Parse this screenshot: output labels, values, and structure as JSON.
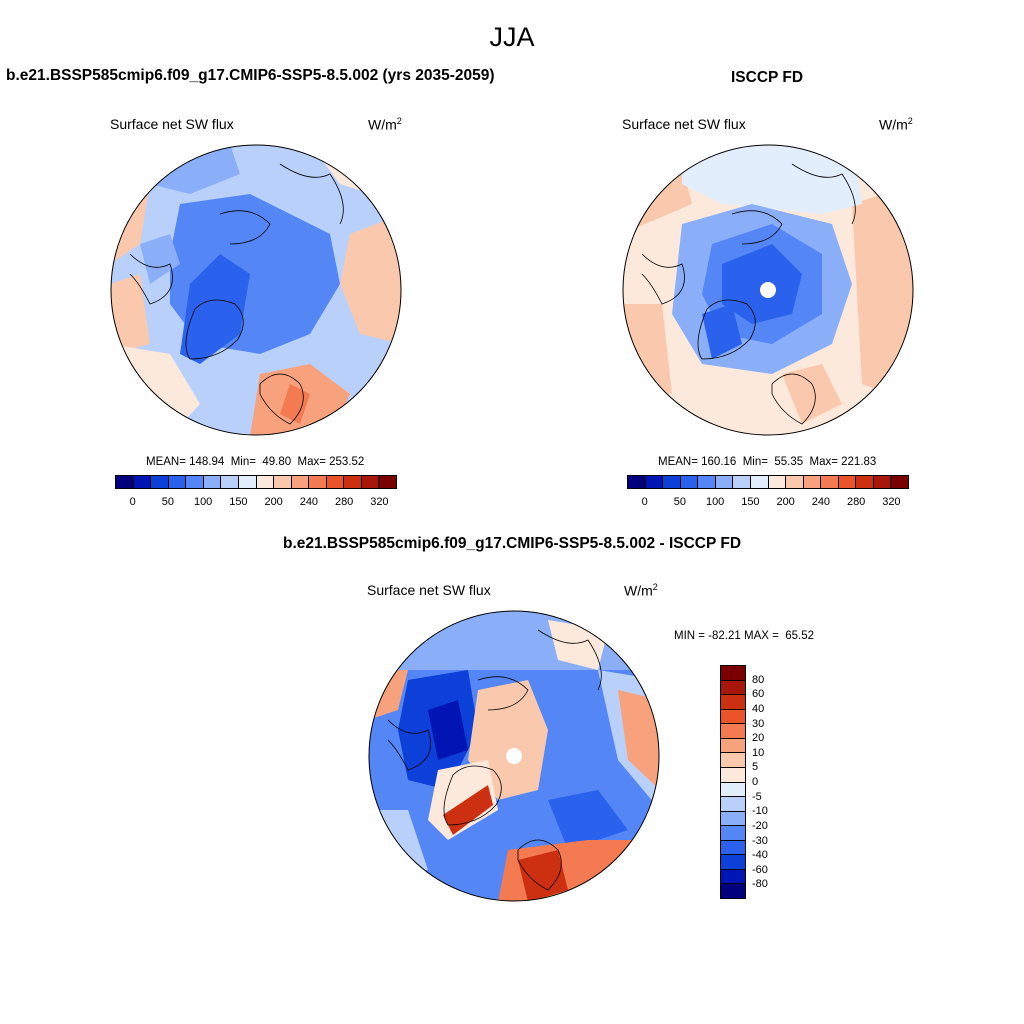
{
  "title": "JJA",
  "panels": {
    "model": {
      "title": "b.e21.BSSP585cmip6.f09_g17.CMIP6-SSP5-8.5.002 (yrs 2035-2059)",
      "variable": "Surface net SW flux",
      "units": "W/m",
      "units_sup": "2",
      "stats": "MEAN= 148.94  Min=  49.80  Max= 253.52",
      "colorbar_ticks": [
        "0",
        "50",
        "100",
        "150",
        "200",
        "240",
        "280",
        "320"
      ]
    },
    "obs": {
      "title": "ISCCP FD",
      "variable": "Surface net SW flux",
      "units": "W/m",
      "units_sup": "2",
      "stats": "MEAN= 160.16  Min=  55.35  Max= 221.83",
      "colorbar_ticks": [
        "0",
        "50",
        "100",
        "150",
        "200",
        "240",
        "280",
        "320"
      ]
    },
    "diff": {
      "title": "b.e21.BSSP585cmip6.f09_g17.CMIP6-SSP5-8.5.002 - ISCCP FD",
      "variable": "Surface net SW flux",
      "units": "W/m",
      "units_sup": "2",
      "stats": "MIN = -82.21 MAX =  65.52",
      "colorbar_ticks": [
        "80",
        "60",
        "40",
        "30",
        "20",
        "10",
        "5",
        "0",
        "-5",
        "-10",
        "-20",
        "-30",
        "-40",
        "-60",
        "-80"
      ]
    }
  },
  "colors": {
    "abs_scale": [
      "#00007f",
      "#0015b3",
      "#0d3fd9",
      "#2a62ee",
      "#5586f5",
      "#8aaff8",
      "#b9d0fb",
      "#e3eefd",
      "#fde9dc",
      "#fac9ad",
      "#f7a27c",
      "#f37a51",
      "#ea5428",
      "#cc3010",
      "#a81808",
      "#7a0000"
    ],
    "diff_scale": [
      "#7a0000",
      "#a81808",
      "#cc3010",
      "#ea5428",
      "#f37a51",
      "#f7a27c",
      "#fac9ad",
      "#fde9dc",
      "#e3eefd",
      "#b9d0fb",
      "#8aaff8",
      "#5586f5",
      "#2a62ee",
      "#0d3fd9",
      "#0015b3",
      "#00007f"
    ]
  }
}
